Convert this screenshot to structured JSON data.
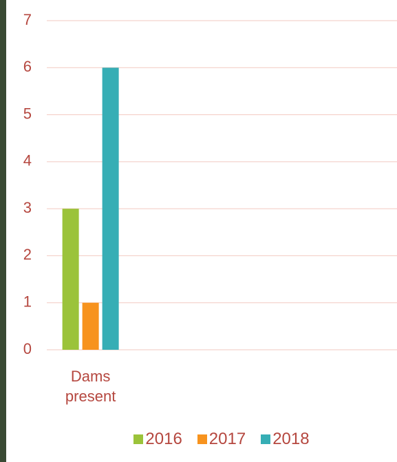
{
  "chart_data": {
    "type": "bar",
    "categories": [
      "Dams present",
      null,
      null,
      null
    ],
    "series": [
      {
        "name": "2016",
        "color": "#9bc33a",
        "values": [
          3,
          null,
          null,
          null
        ]
      },
      {
        "name": "2017",
        "color": "#f7931e",
        "values": [
          1,
          null,
          null,
          null
        ]
      },
      {
        "name": "2018",
        "color": "#36aeb5",
        "values": [
          6,
          null,
          null,
          null
        ]
      }
    ],
    "ylim": [
      0,
      7
    ],
    "yticks": [
      0,
      1,
      2,
      3,
      4,
      5,
      6,
      7
    ],
    "grid": true,
    "legend": "bottom"
  }
}
